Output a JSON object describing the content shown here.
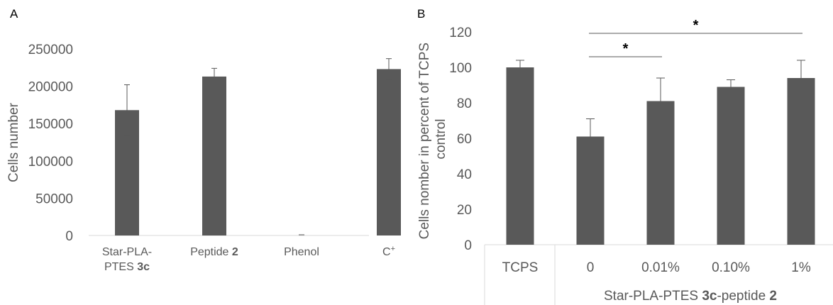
{
  "chart_data": [
    {
      "panel_label": "A",
      "type": "bar",
      "ylabel": "Cells number",
      "ylim": [
        0,
        250000
      ],
      "yticks": [
        "0",
        "50000",
        "100000",
        "150000",
        "200000",
        "250000"
      ],
      "categories": [
        {
          "lines": [
            [
              {
                "t": "Star-PLA-",
                "b": false
              }
            ],
            [
              {
                "t": "PTES ",
                "b": false
              },
              {
                "t": "3c",
                "b": true
              }
            ]
          ]
        },
        {
          "lines": [
            [
              {
                "t": "Peptide ",
                "b": false
              },
              {
                "t": "2",
                "b": true
              }
            ]
          ]
        },
        {
          "lines": [
            [
              {
                "t": "Phenol",
                "b": false
              }
            ]
          ]
        },
        {
          "lines": [
            [
              {
                "t": "C",
                "b": false
              },
              {
                "t": "+",
                "b": false,
                "sup": true
              }
            ]
          ]
        }
      ],
      "values": [
        168000,
        213000,
        0,
        223000
      ],
      "errors": [
        34000,
        11000,
        0,
        14000
      ],
      "color": "#595959"
    },
    {
      "panel_label": "B",
      "type": "bar",
      "ylabel_lines": [
        "Cells nomber in percent of TCPS",
        "control"
      ],
      "ylim": [
        0,
        120
      ],
      "yticks": [
        "0",
        "20",
        "40",
        "60",
        "80",
        "100",
        "120"
      ],
      "categories": [
        "TCPS",
        "0",
        "0.01%",
        "0.10%",
        "1%"
      ],
      "values": [
        100,
        61,
        81,
        89,
        94
      ],
      "errors": [
        4,
        10,
        13,
        4,
        10
      ],
      "group_label": [
        {
          "t": "Star-PLA-PTES ",
          "b": false
        },
        {
          "t": "3c",
          "b": true
        },
        {
          "t": "-peptide ",
          "b": false
        },
        {
          "t": "2",
          "b": true
        }
      ],
      "significance": [
        {
          "from": 1,
          "to": 2,
          "label": "*"
        },
        {
          "from": 1,
          "to": 4,
          "label": "*"
        }
      ],
      "color": "#595959"
    }
  ]
}
